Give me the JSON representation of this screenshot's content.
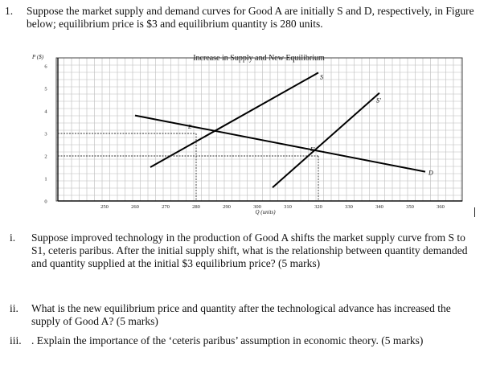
{
  "question": {
    "number": "1.",
    "text": "Suppose the market supply and demand curves for Good A are initially S and D, respectively, in Figure below; equilibrium price is $3 and equilibrium quantity is 280 units."
  },
  "chart_data": {
    "type": "line",
    "title": "Increase in Supply and New Equilibrium",
    "xlabel": "Q (units)",
    "ylabel": "P ($)",
    "x_ticks": [
      250,
      260,
      270,
      280,
      290,
      300,
      310,
      320,
      330,
      340,
      350,
      360
    ],
    "y_ticks": [
      0,
      1,
      2,
      3,
      4,
      5,
      6
    ],
    "xlim": [
      245,
      360
    ],
    "ylim": [
      0,
      6
    ],
    "grid": true,
    "series": [
      {
        "name": "D",
        "x": [
          260,
          355
        ],
        "y": [
          3.8,
          1.3
        ]
      },
      {
        "name": "S",
        "x": [
          265,
          320
        ],
        "y": [
          1.5,
          5.7
        ]
      },
      {
        "name": "S'",
        "x": [
          305,
          340
        ],
        "y": [
          0.6,
          4.8
        ]
      }
    ],
    "points": [
      {
        "name": "E",
        "x": 280,
        "y": 3
      },
      {
        "name": "E'",
        "x": 320,
        "y": 2
      }
    ]
  },
  "subquestions": [
    {
      "num": "i.",
      "text": "Suppose improved technology in the production of Good A shifts the market supply curve from S to S1, ceteris paribus. After the initial supply shift, what is the relationship between quantity demanded and quantity supplied at the initial $3 equilibrium price? (5 marks)"
    },
    {
      "num": "ii.",
      "text": "What is the new equilibrium price and quantity after the technological advance has increased the supply of Good A? (5 marks)"
    },
    {
      "num": "iii.",
      "text": ". Explain the importance of the ‘ceteris paribus’ assumption in economic theory. (5 marks)"
    }
  ]
}
